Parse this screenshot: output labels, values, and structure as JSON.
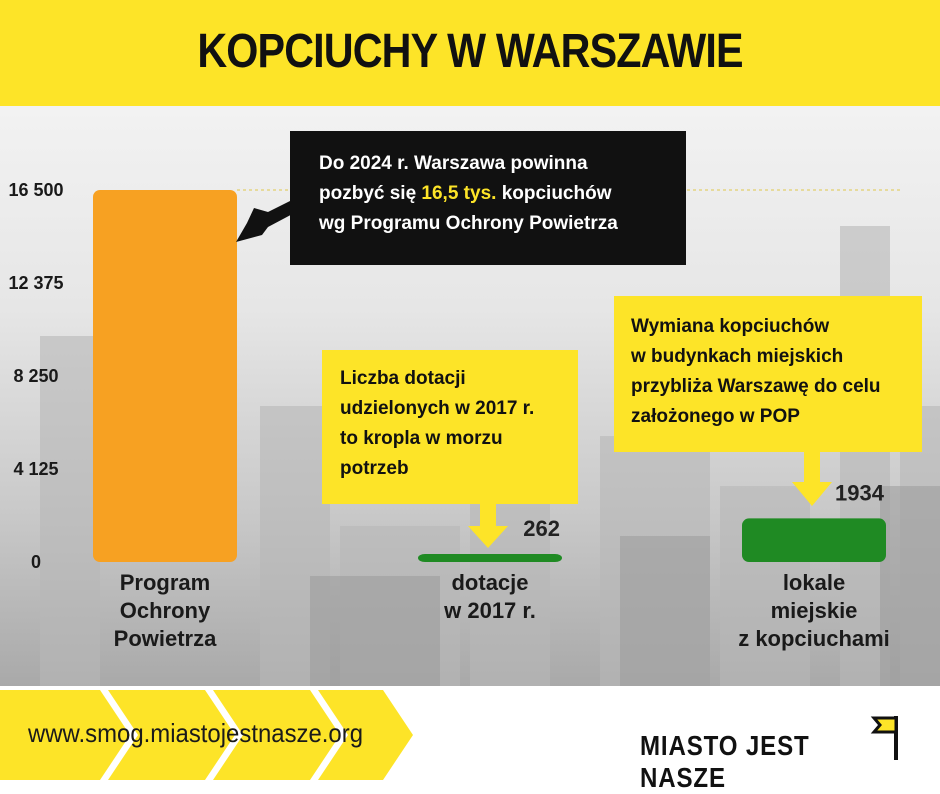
{
  "title": "KOPCIUCHY W WARSZAWIE",
  "colors": {
    "brand_yellow": "#fde428",
    "bar_orange": "#f7a122",
    "bar_green": "#1f8a23",
    "callout_black": "#111111"
  },
  "chart_data": {
    "type": "bar",
    "categories": [
      "Program Ochrony Powietrza",
      "dotacje w 2017 r.",
      "lokale miejskie z kopciuchami"
    ],
    "category_lines": [
      [
        "Program",
        "Ochrony",
        "Powietrza"
      ],
      [
        "dotacje",
        "w 2017 r."
      ],
      [
        "lokale",
        "miejskie",
        "z kopciuchami"
      ]
    ],
    "values": [
      16500,
      262,
      1934
    ],
    "value_labels": [
      "",
      "262",
      "1934"
    ],
    "bar_colors": [
      "#f7a122",
      "#1f8a23",
      "#1f8a23"
    ],
    "ylim": [
      0,
      16500
    ],
    "yticks": [
      0,
      4125,
      8250,
      12375,
      16500
    ],
    "ytick_labels": [
      "0",
      "4 125",
      "8 250",
      "12 375",
      "16 500"
    ],
    "xlabel": "",
    "ylabel": "",
    "grid": false
  },
  "callouts": [
    {
      "lines_html": [
        "Do 2024 r. Warszawa powinna",
        "pozbyć się ",
        "16,5 tys.",
        " kopciuchów",
        "wg Programu Ochrony Powietrza"
      ],
      "line1": "Do 2024 r. Warszawa powinna",
      "line2_a": "pozbyć się ",
      "line2_highlight": "16,5 tys.",
      "line2_b": " kopciuchów",
      "line3": "wg Programu Ochrony Powietrza"
    },
    {
      "line1": "Liczba dotacji",
      "line2": "udzielonych w 2017 r.",
      "line3": "to kropla w morzu",
      "line4": "potrzeb"
    },
    {
      "line1": "Wymiana kopciuchów",
      "line2": "w budynkach miejskich",
      "line3": "przybliża Warszawę do celu",
      "line4": "założonego w POP"
    }
  ],
  "footer": {
    "url": "www.smog.miastojestnasze.org",
    "brand": "MIASTO JEST NASZE",
    "flag_icon": "flag-icon"
  }
}
